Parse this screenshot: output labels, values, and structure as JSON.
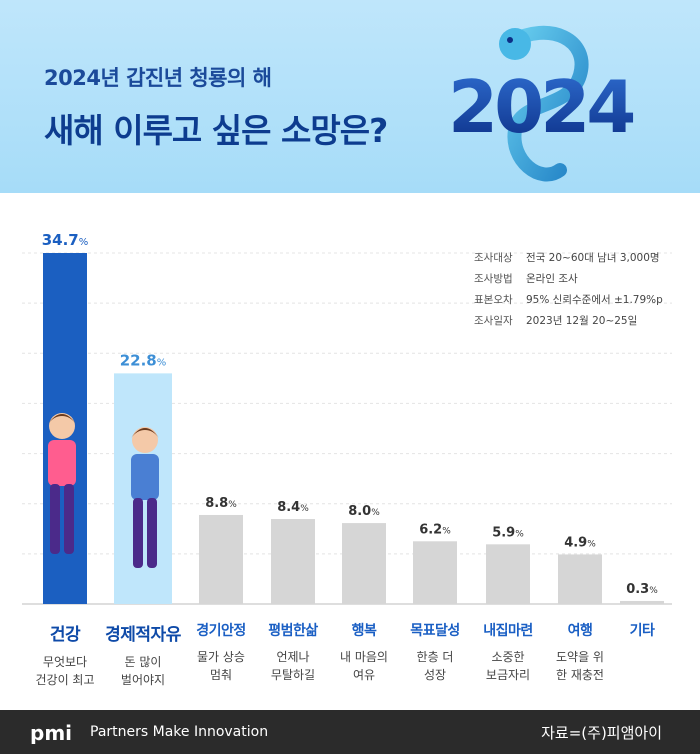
{
  "header": {
    "subtitle": "2024년 갑진년 청룡의 해",
    "title": "새해 이루고 싶은 소망은?",
    "year_art_text": "2024"
  },
  "survey_info": [
    {
      "key": "조사대상",
      "value": "전국 20~60대 남녀 3,000명"
    },
    {
      "key": "조사방법",
      "value": "온라인 조사"
    },
    {
      "key": "표본오차",
      "value": "95% 신뢰수준에서 ±1.79%p"
    },
    {
      "key": "조사일자",
      "value": "2023년 12월 20~25일"
    }
  ],
  "chart_data": {
    "type": "bar",
    "title": "새해 이루고 싶은 소망은?",
    "unit": "%",
    "categories": [
      "건강",
      "경제적자유",
      "경기안정",
      "평범한삶",
      "행복",
      "목표달성",
      "내집마련",
      "여행",
      "기타"
    ],
    "descriptions": [
      "무엇보다\n건강이 최고",
      "돈 많이\n벌어야지",
      "물가 상승\n멈춰",
      "언제나\n무탈하길",
      "내 마음의\n여유",
      "한층 더\n성장",
      "소중한\n보금자리",
      "도약을 위\n한 재충전",
      ""
    ],
    "values": [
      34.7,
      22.8,
      8.8,
      8.4,
      8.0,
      6.2,
      5.9,
      4.9,
      0.3
    ],
    "value_labels": [
      "34.7",
      "22.8",
      "8.8",
      "8.4",
      "8.0",
      "6.2",
      "5.9",
      "4.9",
      "0.3"
    ],
    "ylim": [
      0,
      34.7
    ],
    "grid": true,
    "colors": {
      "first": "#1b5fc1",
      "second": "#bfe6fb",
      "rest": "#d6d6d6",
      "first_label": "#1b5fc1",
      "second_label": "#3d8fd6",
      "rest_label": "#333333"
    }
  },
  "footer": {
    "logo": "pmi",
    "tagline": "Partners Make Innovation",
    "source": "자료=(주)피앰아이"
  }
}
